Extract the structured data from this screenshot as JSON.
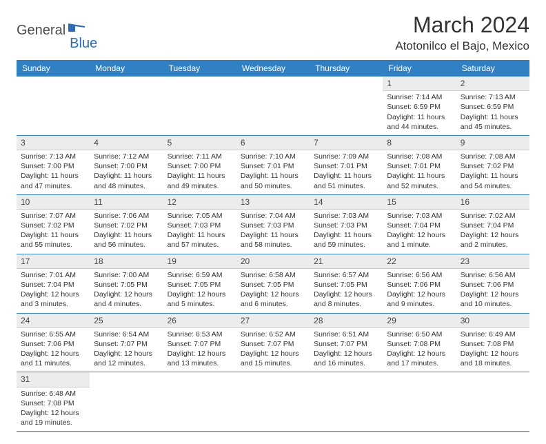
{
  "logo": {
    "part1": "General",
    "part2": "Blue"
  },
  "title": "March 2024",
  "location": "Atotonilco el Bajo, Mexico",
  "colors": {
    "header_bg": "#3180c4",
    "header_text": "#ffffff",
    "daynum_bg": "#ececec",
    "row_border": "#3180c4",
    "logo_accent": "#2d6bb5",
    "text": "#333333"
  },
  "day_headers": [
    "Sunday",
    "Monday",
    "Tuesday",
    "Wednesday",
    "Thursday",
    "Friday",
    "Saturday"
  ],
  "weeks": [
    [
      {
        "empty": true
      },
      {
        "empty": true
      },
      {
        "empty": true
      },
      {
        "empty": true
      },
      {
        "empty": true
      },
      {
        "num": "1",
        "sunrise": "Sunrise: 7:14 AM",
        "sunset": "Sunset: 6:59 PM",
        "daylight": "Daylight: 11 hours and 44 minutes."
      },
      {
        "num": "2",
        "sunrise": "Sunrise: 7:13 AM",
        "sunset": "Sunset: 6:59 PM",
        "daylight": "Daylight: 11 hours and 45 minutes."
      }
    ],
    [
      {
        "num": "3",
        "sunrise": "Sunrise: 7:13 AM",
        "sunset": "Sunset: 7:00 PM",
        "daylight": "Daylight: 11 hours and 47 minutes."
      },
      {
        "num": "4",
        "sunrise": "Sunrise: 7:12 AM",
        "sunset": "Sunset: 7:00 PM",
        "daylight": "Daylight: 11 hours and 48 minutes."
      },
      {
        "num": "5",
        "sunrise": "Sunrise: 7:11 AM",
        "sunset": "Sunset: 7:00 PM",
        "daylight": "Daylight: 11 hours and 49 minutes."
      },
      {
        "num": "6",
        "sunrise": "Sunrise: 7:10 AM",
        "sunset": "Sunset: 7:01 PM",
        "daylight": "Daylight: 11 hours and 50 minutes."
      },
      {
        "num": "7",
        "sunrise": "Sunrise: 7:09 AM",
        "sunset": "Sunset: 7:01 PM",
        "daylight": "Daylight: 11 hours and 51 minutes."
      },
      {
        "num": "8",
        "sunrise": "Sunrise: 7:08 AM",
        "sunset": "Sunset: 7:01 PM",
        "daylight": "Daylight: 11 hours and 52 minutes."
      },
      {
        "num": "9",
        "sunrise": "Sunrise: 7:08 AM",
        "sunset": "Sunset: 7:02 PM",
        "daylight": "Daylight: 11 hours and 54 minutes."
      }
    ],
    [
      {
        "num": "10",
        "sunrise": "Sunrise: 7:07 AM",
        "sunset": "Sunset: 7:02 PM",
        "daylight": "Daylight: 11 hours and 55 minutes."
      },
      {
        "num": "11",
        "sunrise": "Sunrise: 7:06 AM",
        "sunset": "Sunset: 7:02 PM",
        "daylight": "Daylight: 11 hours and 56 minutes."
      },
      {
        "num": "12",
        "sunrise": "Sunrise: 7:05 AM",
        "sunset": "Sunset: 7:03 PM",
        "daylight": "Daylight: 11 hours and 57 minutes."
      },
      {
        "num": "13",
        "sunrise": "Sunrise: 7:04 AM",
        "sunset": "Sunset: 7:03 PM",
        "daylight": "Daylight: 11 hours and 58 minutes."
      },
      {
        "num": "14",
        "sunrise": "Sunrise: 7:03 AM",
        "sunset": "Sunset: 7:03 PM",
        "daylight": "Daylight: 11 hours and 59 minutes."
      },
      {
        "num": "15",
        "sunrise": "Sunrise: 7:03 AM",
        "sunset": "Sunset: 7:04 PM",
        "daylight": "Daylight: 12 hours and 1 minute."
      },
      {
        "num": "16",
        "sunrise": "Sunrise: 7:02 AM",
        "sunset": "Sunset: 7:04 PM",
        "daylight": "Daylight: 12 hours and 2 minutes."
      }
    ],
    [
      {
        "num": "17",
        "sunrise": "Sunrise: 7:01 AM",
        "sunset": "Sunset: 7:04 PM",
        "daylight": "Daylight: 12 hours and 3 minutes."
      },
      {
        "num": "18",
        "sunrise": "Sunrise: 7:00 AM",
        "sunset": "Sunset: 7:05 PM",
        "daylight": "Daylight: 12 hours and 4 minutes."
      },
      {
        "num": "19",
        "sunrise": "Sunrise: 6:59 AM",
        "sunset": "Sunset: 7:05 PM",
        "daylight": "Daylight: 12 hours and 5 minutes."
      },
      {
        "num": "20",
        "sunrise": "Sunrise: 6:58 AM",
        "sunset": "Sunset: 7:05 PM",
        "daylight": "Daylight: 12 hours and 6 minutes."
      },
      {
        "num": "21",
        "sunrise": "Sunrise: 6:57 AM",
        "sunset": "Sunset: 7:05 PM",
        "daylight": "Daylight: 12 hours and 8 minutes."
      },
      {
        "num": "22",
        "sunrise": "Sunrise: 6:56 AM",
        "sunset": "Sunset: 7:06 PM",
        "daylight": "Daylight: 12 hours and 9 minutes."
      },
      {
        "num": "23",
        "sunrise": "Sunrise: 6:56 AM",
        "sunset": "Sunset: 7:06 PM",
        "daylight": "Daylight: 12 hours and 10 minutes."
      }
    ],
    [
      {
        "num": "24",
        "sunrise": "Sunrise: 6:55 AM",
        "sunset": "Sunset: 7:06 PM",
        "daylight": "Daylight: 12 hours and 11 minutes."
      },
      {
        "num": "25",
        "sunrise": "Sunrise: 6:54 AM",
        "sunset": "Sunset: 7:07 PM",
        "daylight": "Daylight: 12 hours and 12 minutes."
      },
      {
        "num": "26",
        "sunrise": "Sunrise: 6:53 AM",
        "sunset": "Sunset: 7:07 PM",
        "daylight": "Daylight: 12 hours and 13 minutes."
      },
      {
        "num": "27",
        "sunrise": "Sunrise: 6:52 AM",
        "sunset": "Sunset: 7:07 PM",
        "daylight": "Daylight: 12 hours and 15 minutes."
      },
      {
        "num": "28",
        "sunrise": "Sunrise: 6:51 AM",
        "sunset": "Sunset: 7:07 PM",
        "daylight": "Daylight: 12 hours and 16 minutes."
      },
      {
        "num": "29",
        "sunrise": "Sunrise: 6:50 AM",
        "sunset": "Sunset: 7:08 PM",
        "daylight": "Daylight: 12 hours and 17 minutes."
      },
      {
        "num": "30",
        "sunrise": "Sunrise: 6:49 AM",
        "sunset": "Sunset: 7:08 PM",
        "daylight": "Daylight: 12 hours and 18 minutes."
      }
    ],
    [
      {
        "num": "31",
        "sunrise": "Sunrise: 6:48 AM",
        "sunset": "Sunset: 7:08 PM",
        "daylight": "Daylight: 12 hours and 19 minutes."
      },
      {
        "empty": true
      },
      {
        "empty": true
      },
      {
        "empty": true
      },
      {
        "empty": true
      },
      {
        "empty": true
      },
      {
        "empty": true
      }
    ]
  ]
}
